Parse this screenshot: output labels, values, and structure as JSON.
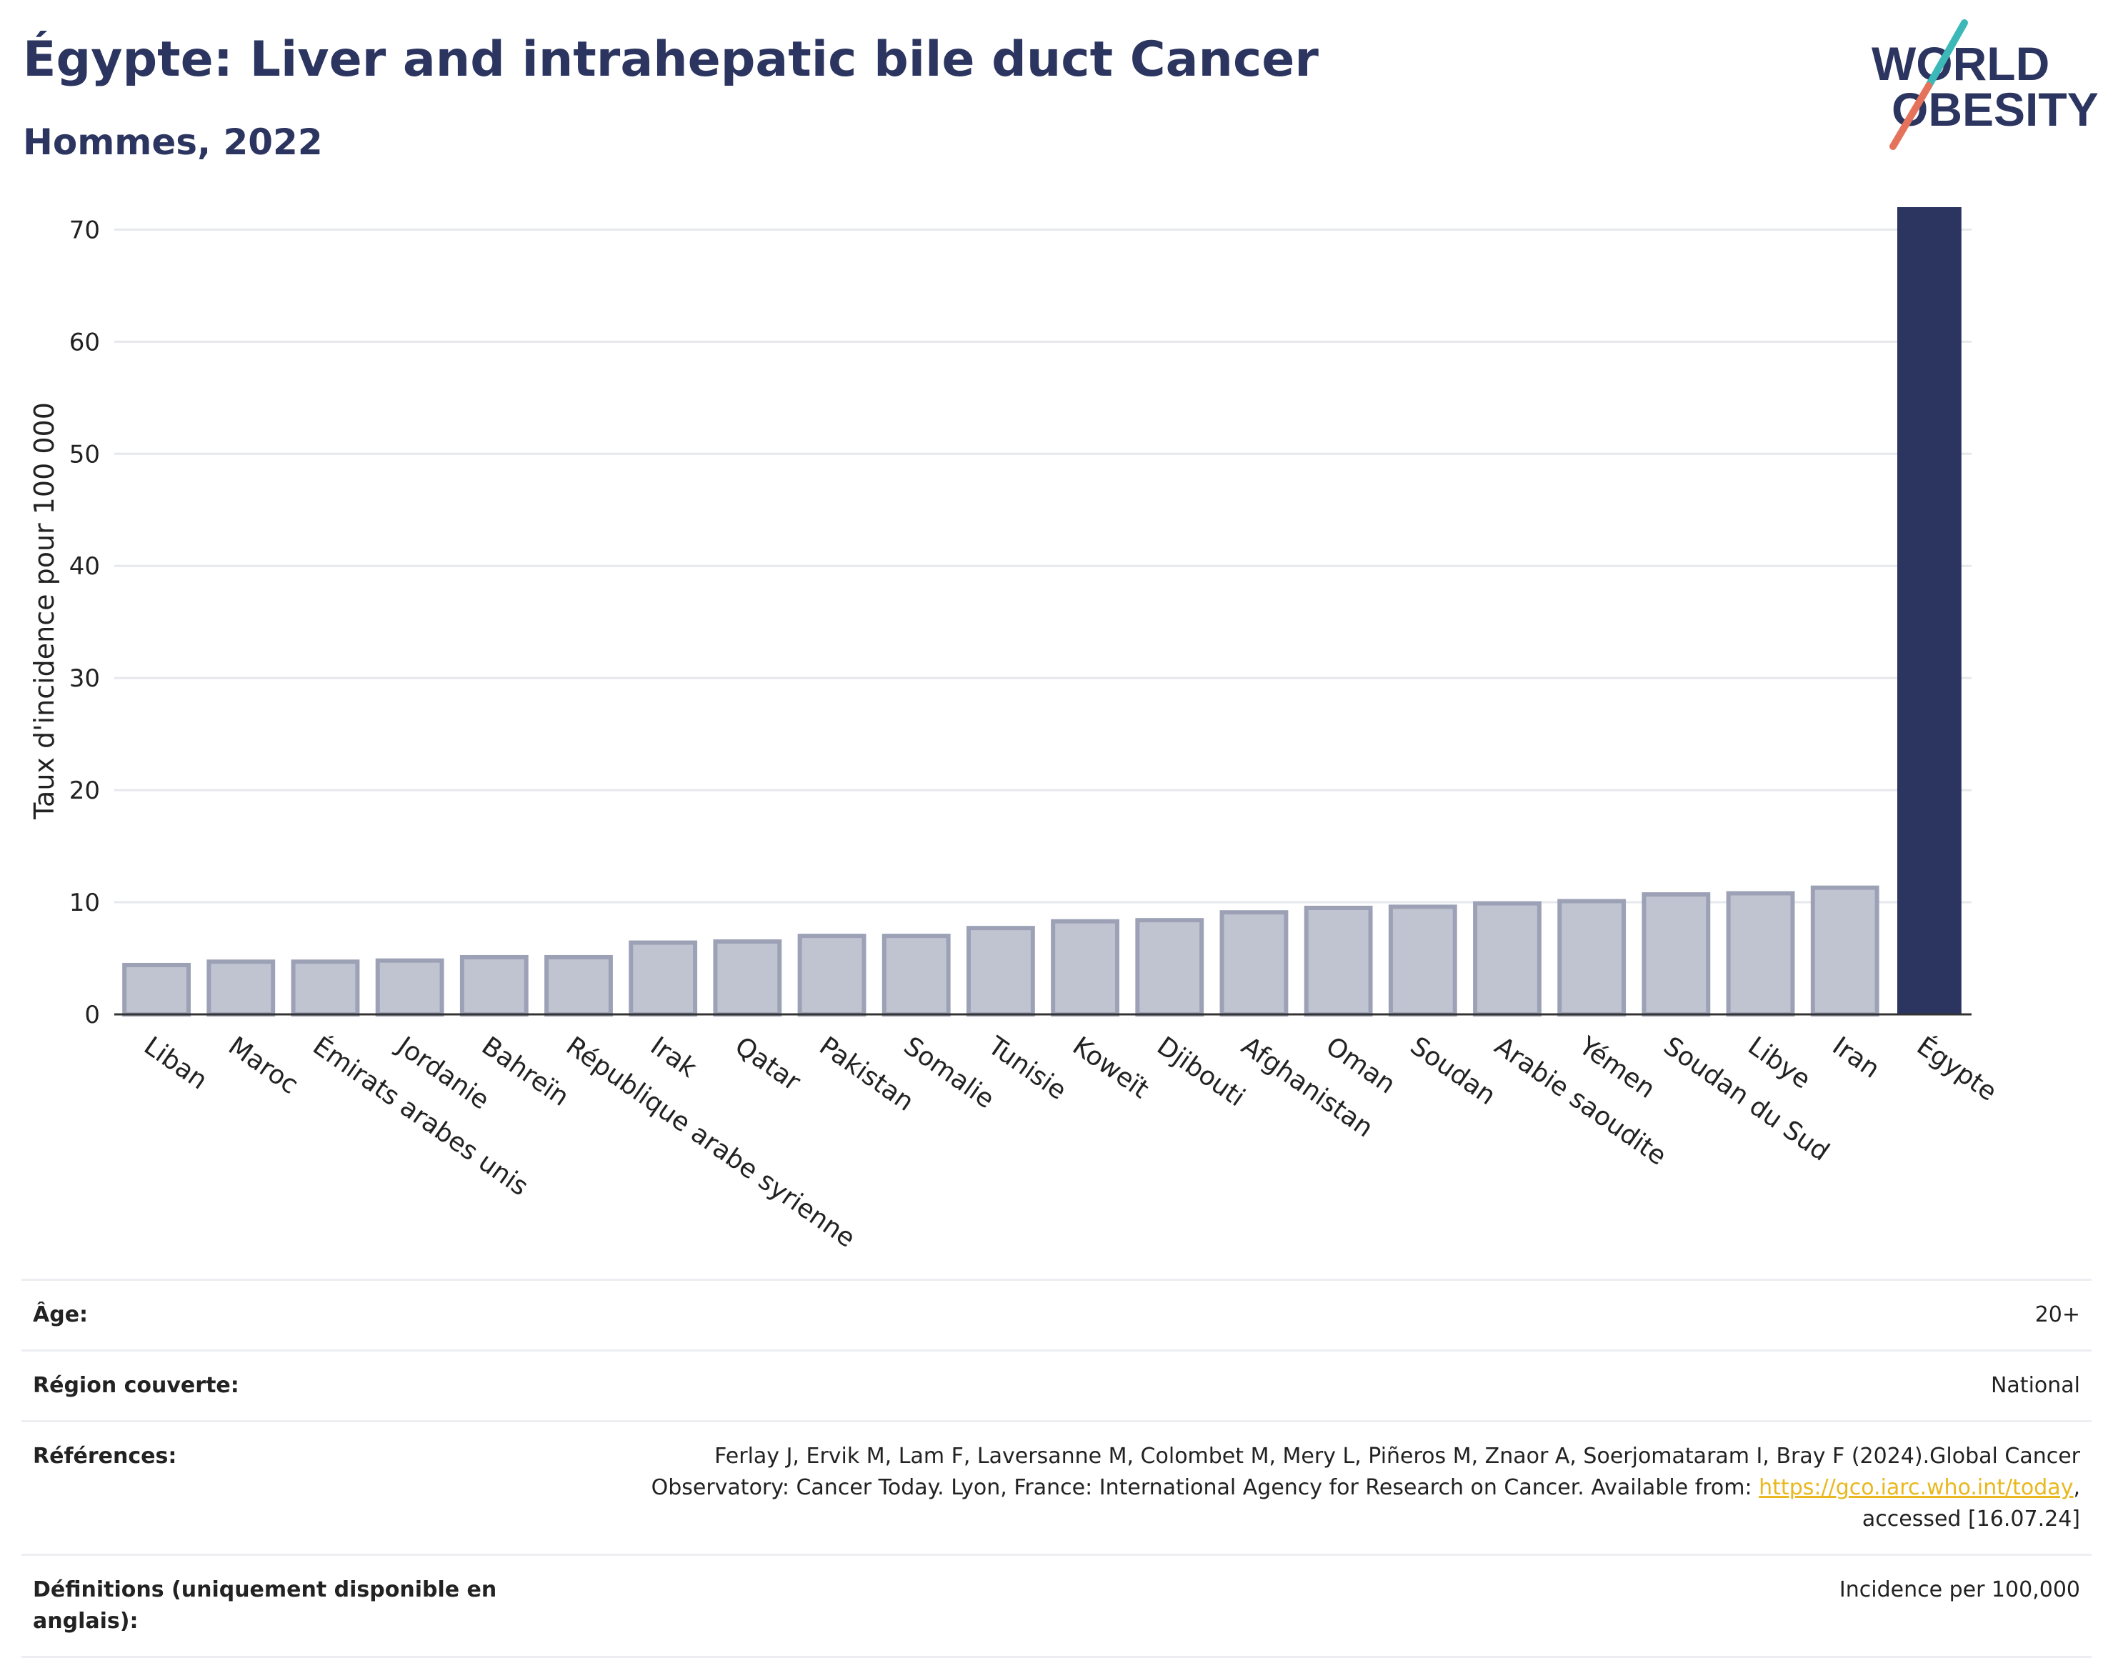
{
  "header": {
    "title": "Égypte: Liver and intrahepatic bile duct Cancer",
    "subtitle": "Hommes, 2022",
    "logo_line1": "WORLD",
    "logo_line2": "OBESITY"
  },
  "chart_data": {
    "type": "bar",
    "ylabel": "Taux d'incidence pour 100 000",
    "xlabel": "",
    "ylim": [
      0,
      72
    ],
    "yticks": [
      0,
      10,
      20,
      30,
      40,
      50,
      60,
      70
    ],
    "grid": true,
    "categories": [
      "Liban",
      "Maroc",
      "Émirats arabes unis",
      "Jordanie",
      "Bahreïn",
      "République arabe syrienne",
      "Irak",
      "Qatar",
      "Pakistan",
      "Somalie",
      "Tunisie",
      "Koweït",
      "Djibouti",
      "Afghanistan",
      "Oman",
      "Soudan",
      "Arabie saoudite",
      "Yémen",
      "Soudan du Sud",
      "Libye",
      "Iran",
      "Égypte"
    ],
    "values": [
      4.4,
      4.7,
      4.7,
      4.8,
      5.1,
      5.1,
      6.4,
      6.5,
      7.0,
      7.0,
      7.7,
      8.3,
      8.4,
      9.1,
      9.5,
      9.6,
      9.9,
      10.1,
      10.7,
      10.8,
      11.3,
      72.0
    ],
    "highlight": "Égypte",
    "colors": {
      "bar": "#c0c4d1",
      "bar_edge": "#9ca1b6",
      "highlight": "#2b3560",
      "grid": "#e6e8ed",
      "axis": "#333333"
    }
  },
  "meta": {
    "age_label": "Âge:",
    "age_value": "20+",
    "region_label": "Région couverte:",
    "region_value": "National",
    "ref_label": "Références:",
    "ref_text1": "Ferlay J, Ervik M, Lam F, Laversanne M, Colombet M, Mery L, Piñeros M, Znaor A, Soerjomataram I, Bray F (2024).Global Cancer",
    "ref_text2": "Observatory: Cancer Today. Lyon, France: International Agency for Research on Cancer. Available from: ",
    "ref_link": "https://gco.iarc.who.int/today",
    "ref_text3": ",",
    "ref_text4": "accessed [16.07.24]",
    "def_label": "Définitions (uniquement disponible en anglais):",
    "def_value": "Incidence per 100,000"
  }
}
